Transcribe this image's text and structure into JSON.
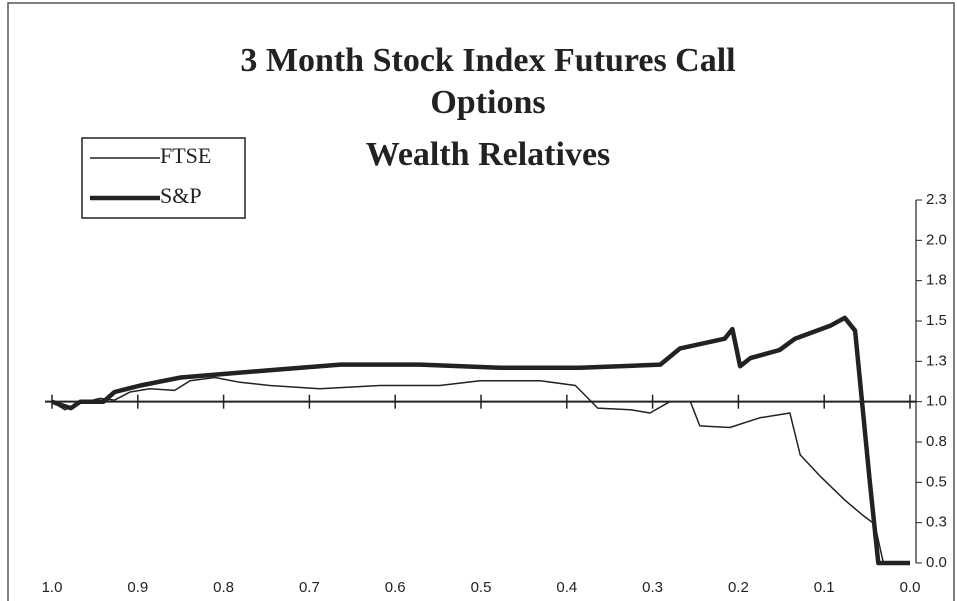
{
  "chart_data": {
    "type": "line",
    "title": "3 Month Stock Index Futures Call Options",
    "subtitle": "Wealth Relatives",
    "xlim": [
      1.0,
      0.0
    ],
    "xticks": [
      {
        "value": 1,
        "label": "1.0"
      },
      0.9,
      0.8,
      0.7,
      0.6,
      0.5,
      0.4,
      0.3,
      0.2,
      0.1,
      {
        "value": 0,
        "label": "0.0"
      }
    ],
    "ylim": [
      0,
      2.25
    ],
    "yticks": [
      {
        "value": 0,
        "label": "0.0"
      },
      {
        "value": 0.25,
        "label": "0.3"
      },
      0.5,
      {
        "value": 0.75,
        "label": "0.8"
      },
      {
        "value": 1,
        "label": "1.0"
      },
      {
        "value": 1.25,
        "label": "1.3"
      },
      1.5,
      {
        "value": 1.75,
        "label": "1.8"
      },
      {
        "value": 2,
        "label": "2.0"
      },
      {
        "value": 2.25,
        "label": "2.3"
      }
    ],
    "legend": "upper left",
    "series": [
      {
        "name": "FTSE",
        "color": "#222222",
        "width": 1.5,
        "x": [
          1.0,
          0.985,
          0.967,
          0.944,
          0.927,
          0.909,
          0.886,
          0.857,
          0.839,
          0.81,
          0.781,
          0.746,
          0.688,
          0.618,
          0.548,
          0.501,
          0.431,
          0.39,
          0.364,
          0.326,
          0.303,
          0.28,
          0.256,
          0.245,
          0.21,
          0.175,
          0.14,
          0.128,
          0.105,
          0.076,
          0.056,
          0.041,
          0.031,
          0.0
        ],
        "values": [
          1.0,
          0.95,
          0.99,
          1.02,
          1.01,
          1.06,
          1.08,
          1.07,
          1.13,
          1.15,
          1.12,
          1.1,
          1.08,
          1.1,
          1.1,
          1.13,
          1.13,
          1.1,
          0.96,
          0.95,
          0.93,
          1.0,
          1.0,
          0.85,
          0.84,
          0.9,
          0.93,
          0.67,
          0.54,
          0.39,
          0.3,
          0.24,
          0.0,
          0.0
        ]
      },
      {
        "name": "S&P",
        "color": "#222222",
        "width": 4.5,
        "x": [
          1.0,
          0.99,
          0.978,
          0.967,
          0.94,
          0.927,
          0.897,
          0.85,
          0.804,
          0.734,
          0.664,
          0.571,
          0.478,
          0.385,
          0.291,
          0.268,
          0.216,
          0.207,
          0.198,
          0.186,
          0.152,
          0.134,
          0.093,
          0.076,
          0.064,
          0.055,
          0.047,
          0.037,
          0.0
        ],
        "values": [
          1.0,
          0.98,
          0.96,
          1.0,
          1.0,
          1.06,
          1.1,
          1.15,
          1.17,
          1.2,
          1.23,
          1.23,
          1.21,
          1.21,
          1.23,
          1.33,
          1.39,
          1.45,
          1.22,
          1.27,
          1.32,
          1.39,
          1.47,
          1.52,
          1.44,
          0.95,
          0.51,
          0.0,
          0.0
        ]
      }
    ]
  }
}
